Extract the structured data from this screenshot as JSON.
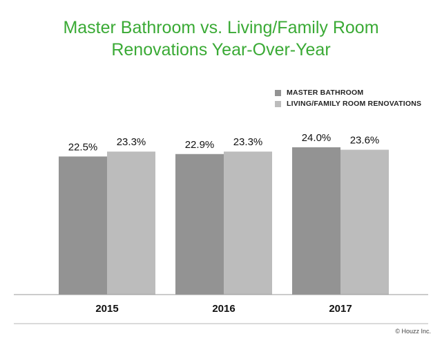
{
  "title": {
    "line1": "Master Bathroom vs. Living/Family Room",
    "line2": "Renovations Year-Over-Year"
  },
  "colors": {
    "title": "#3aaa35",
    "series1": "#939393",
    "series2": "#bcbcbc",
    "baseline": "#999999"
  },
  "credit": "© Houzz Inc.",
  "chart_data": {
    "type": "bar",
    "categories": [
      "2015",
      "2016",
      "2017"
    ],
    "series": [
      {
        "name": "MASTER BATHROOM",
        "values": [
          22.5,
          22.9,
          24.0
        ],
        "labels": [
          "22.5%",
          "22.9%",
          "24.0%"
        ]
      },
      {
        "name": "LIVING/FAMILY ROOM RENOVATIONS",
        "values": [
          23.3,
          23.3,
          23.6
        ],
        "labels": [
          "23.3%",
          "23.3%",
          "23.6%"
        ]
      }
    ],
    "title": "Master Bathroom vs. Living/Family Room Renovations Year-Over-Year",
    "xlabel": "",
    "ylabel": "",
    "ylim": [
      0,
      24.0
    ],
    "grid": false,
    "legend_position": "top-right"
  }
}
